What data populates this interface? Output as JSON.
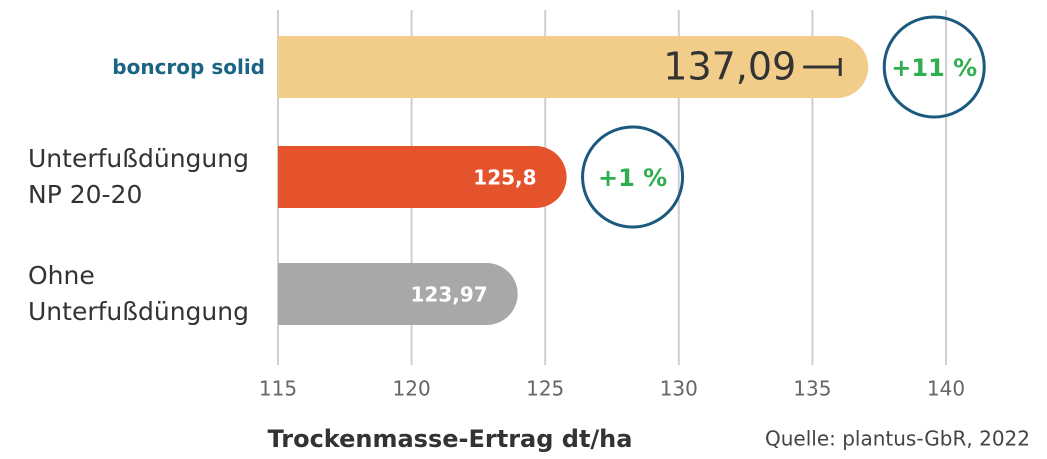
{
  "chart_data": {
    "type": "bar",
    "orientation": "horizontal",
    "categories": [
      "boncrop solid",
      "Unterfußdüngung NP 20-20",
      "Ohne Unterfußdüngung"
    ],
    "values": [
      137.09,
      125.8,
      123.97
    ],
    "value_labels": [
      "137,09",
      "125,8",
      "123,97"
    ],
    "colors": [
      "#f2cd8a",
      "#e5532d",
      "#a8a8aa"
    ],
    "annotations": [
      {
        "bar": 0,
        "text": "+11 %"
      },
      {
        "bar": 1,
        "text": "+1 %"
      }
    ],
    "xlim": [
      115,
      140
    ],
    "xticks": [
      115,
      120,
      125,
      130,
      135,
      140
    ],
    "grid": true,
    "xlabel": "Trockenmasse-Ertrag dt/ha",
    "source": "Quelle: plantus-GbR, 2022"
  }
}
